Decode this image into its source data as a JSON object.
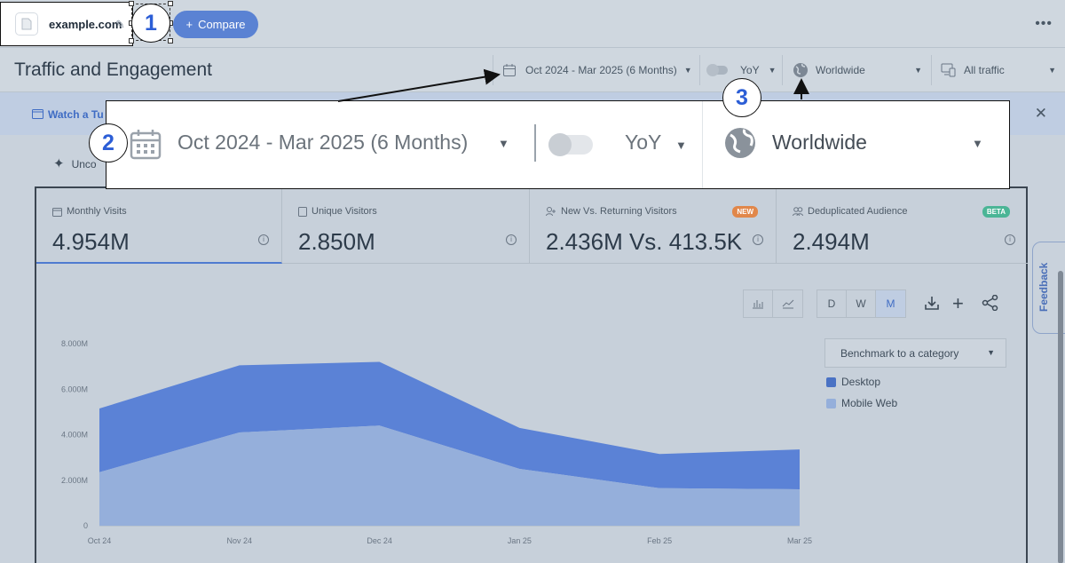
{
  "topbar": {
    "domain": "example.com",
    "compare_label": "Compare",
    "more_label": "•••"
  },
  "header": {
    "title": "Traffic and Engagement",
    "date_range": "Oct 2024 - Mar 2025 (6 Months)",
    "yoy_label": "YoY",
    "region": "Worldwide",
    "traffic_filter": "All traffic"
  },
  "banner": {
    "text": "Watch a Tu",
    "close": "✕"
  },
  "uncovered_text": "Unco",
  "callout": {
    "date_range": "Oct 2024 - Mar 2025 (6 Months)",
    "yoy_label": "YoY",
    "region": "Worldwide"
  },
  "annotations": [
    "1",
    "2",
    "3"
  ],
  "metrics": [
    {
      "label": "Monthly Visits",
      "value": "4.954M",
      "badge": ""
    },
    {
      "label": "Unique Visitors",
      "value": "2.850M",
      "badge": ""
    },
    {
      "label": "New Vs. Returning Visitors",
      "value": "2.436M Vs. 413.5K",
      "badge": "NEW"
    },
    {
      "label": "Deduplicated Audience",
      "value": "2.494M",
      "badge": "BETA"
    }
  ],
  "granularity": [
    "D",
    "W",
    "M"
  ],
  "benchmark_label": "Benchmark to a category",
  "legend": [
    "Desktop",
    "Mobile Web"
  ],
  "feedback_label": "Feedback",
  "colors": {
    "desktop": "#5b82d6",
    "mobile": "#95afdb",
    "accent": "#2c5ed6",
    "new_badge": "#e1874a",
    "beta_badge": "#4bb596"
  },
  "chart_data": {
    "type": "area",
    "stacked": true,
    "categories": [
      "Oct 24",
      "Nov 24",
      "Dec 24",
      "Jan 25",
      "Feb 25",
      "Mar 25"
    ],
    "series": [
      {
        "name": "Mobile Web",
        "values": [
          2.35,
          4.1,
          4.4,
          2.5,
          1.65,
          1.6
        ]
      },
      {
        "name": "Desktop",
        "values": [
          2.8,
          2.95,
          2.8,
          1.8,
          1.5,
          1.75
        ]
      }
    ],
    "y_ticks": [
      "0",
      "2.000M",
      "4.000M",
      "6.000M",
      "8.000M"
    ],
    "ylim": [
      0,
      8
    ],
    "unit": "M"
  }
}
